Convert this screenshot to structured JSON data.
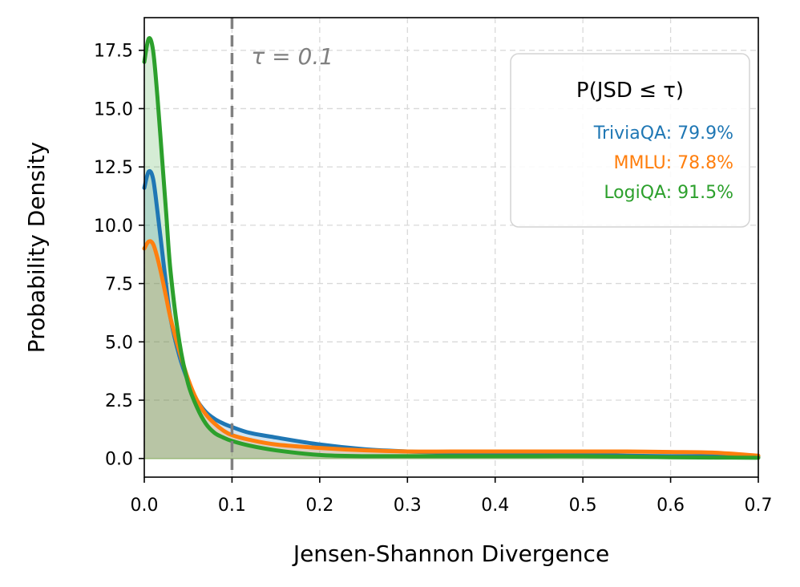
{
  "chart_data": {
    "type": "line",
    "title": "",
    "xlabel": "Jensen-Shannon Divergence",
    "ylabel": "Probability Density",
    "xlim": [
      0.0,
      0.7
    ],
    "ylim": [
      -0.8,
      18.9
    ],
    "grid": true,
    "x_ticks": [
      0.0,
      0.1,
      0.2,
      0.3,
      0.4,
      0.5,
      0.6,
      0.7
    ],
    "x_tick_labels": [
      "0.0",
      "0.1",
      "0.2",
      "0.3",
      "0.4",
      "0.5",
      "0.6",
      "0.7"
    ],
    "y_ticks": [
      0.0,
      2.5,
      5.0,
      7.5,
      10.0,
      12.5,
      15.0,
      17.5
    ],
    "y_tick_labels": [
      "0.0",
      "2.5",
      "5.0",
      "7.5",
      "10.0",
      "12.5",
      "15.0",
      "17.5"
    ],
    "threshold": {
      "x": 0.1,
      "label": "τ = 0.1",
      "color": "#808080"
    },
    "legend": {
      "title": "P(JSD ≤ τ)",
      "placement": "top-right",
      "entries": [
        {
          "text": "TriviaQA: 79.9%",
          "color": "#1f77b4"
        },
        {
          "text": "MMLU: 78.8%",
          "color": "#ff7f0e"
        },
        {
          "text": "LogiQA: 91.5%",
          "color": "#2ca02c"
        }
      ]
    },
    "series": [
      {
        "name": "TriviaQA",
        "color": "#1f77b4",
        "x": [
          0.0,
          0.005,
          0.01,
          0.015,
          0.02,
          0.025,
          0.03,
          0.04,
          0.05,
          0.06,
          0.07,
          0.08,
          0.09,
          0.1,
          0.12,
          0.15,
          0.2,
          0.25,
          0.3,
          0.35,
          0.4,
          0.45,
          0.5,
          0.55,
          0.6,
          0.65,
          0.7
        ],
        "y": [
          11.6,
          12.3,
          12.0,
          10.6,
          9.0,
          7.4,
          6.0,
          4.4,
          3.3,
          2.5,
          2.0,
          1.7,
          1.5,
          1.35,
          1.1,
          0.9,
          0.6,
          0.4,
          0.3,
          0.25,
          0.2,
          0.18,
          0.15,
          0.12,
          0.1,
          0.1,
          0.08
        ]
      },
      {
        "name": "MMLU",
        "color": "#ff7f0e",
        "x": [
          0.0,
          0.005,
          0.01,
          0.015,
          0.02,
          0.025,
          0.03,
          0.04,
          0.05,
          0.06,
          0.07,
          0.08,
          0.09,
          0.1,
          0.12,
          0.15,
          0.2,
          0.25,
          0.3,
          0.35,
          0.4,
          0.45,
          0.5,
          0.55,
          0.6,
          0.65,
          0.7
        ],
        "y": [
          9.0,
          9.3,
          9.2,
          8.6,
          7.8,
          6.9,
          6.0,
          4.6,
          3.4,
          2.5,
          1.9,
          1.5,
          1.2,
          1.0,
          0.8,
          0.6,
          0.45,
          0.35,
          0.3,
          0.3,
          0.3,
          0.3,
          0.3,
          0.3,
          0.28,
          0.25,
          0.12
        ]
      },
      {
        "name": "LogiQA",
        "color": "#2ca02c",
        "x": [
          0.0,
          0.005,
          0.01,
          0.015,
          0.02,
          0.025,
          0.03,
          0.04,
          0.05,
          0.06,
          0.07,
          0.08,
          0.09,
          0.1,
          0.12,
          0.15,
          0.2,
          0.25,
          0.3,
          0.35,
          0.4,
          0.45,
          0.5,
          0.55,
          0.6,
          0.65,
          0.7
        ],
        "y": [
          17.0,
          18.0,
          17.5,
          15.5,
          13.0,
          10.5,
          8.0,
          5.0,
          3.2,
          2.2,
          1.5,
          1.1,
          0.9,
          0.75,
          0.55,
          0.35,
          0.15,
          0.1,
          0.1,
          0.1,
          0.1,
          0.1,
          0.1,
          0.08,
          0.05,
          0.04,
          0.03
        ]
      }
    ]
  }
}
